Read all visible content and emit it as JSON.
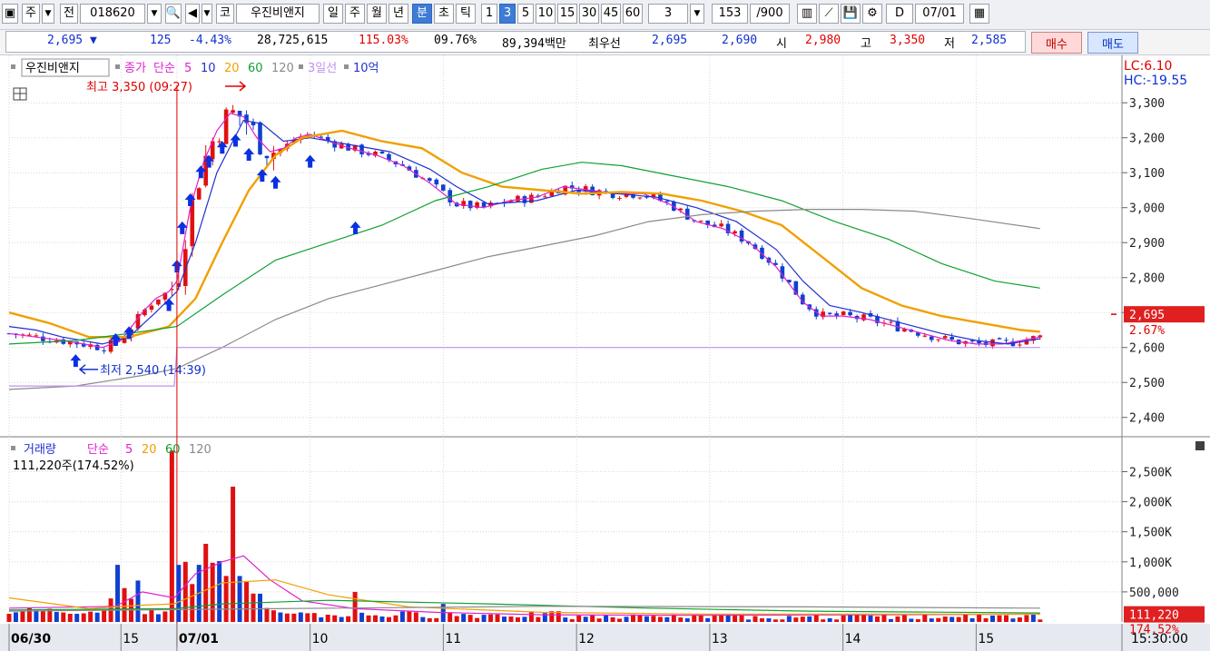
{
  "toolbar": {
    "items": [
      {
        "id": "layout",
        "label": "▣"
      },
      {
        "id": "type",
        "label": "주"
      },
      {
        "id": "type_dd",
        "label": "▼"
      },
      {
        "id": "prev",
        "label": "전"
      },
      {
        "id": "code",
        "label": "018620"
      },
      {
        "id": "code_dd",
        "label": "▼"
      },
      {
        "id": "search",
        "label": "🔍"
      },
      {
        "id": "sound",
        "label": "◀"
      },
      {
        "id": "sound_dd",
        "label": "▼"
      },
      {
        "id": "market",
        "label": "코"
      },
      {
        "id": "name",
        "label": "우진비앤지"
      },
      {
        "id": "p_day",
        "label": "일"
      },
      {
        "id": "p_week",
        "label": "주"
      },
      {
        "id": "p_month",
        "label": "월"
      },
      {
        "id": "p_year",
        "label": "년"
      },
      {
        "id": "p_min",
        "label": "분"
      },
      {
        "id": "p_sec",
        "label": "초"
      },
      {
        "id": "p_tick",
        "label": "틱"
      },
      {
        "id": "i1",
        "label": "1"
      },
      {
        "id": "i3",
        "label": "3"
      },
      {
        "id": "i5",
        "label": "5"
      },
      {
        "id": "i10",
        "label": "10"
      },
      {
        "id": "i15",
        "label": "15"
      },
      {
        "id": "i30",
        "label": "30"
      },
      {
        "id": "i45",
        "label": "45"
      },
      {
        "id": "i60",
        "label": "60"
      },
      {
        "id": "interval",
        "label": "3"
      },
      {
        "id": "interval_dd",
        "label": "▼"
      },
      {
        "id": "count",
        "label": "153"
      },
      {
        "id": "count_total",
        "label": "/900"
      },
      {
        "id": "candle_icon",
        "label": "▥"
      },
      {
        "id": "line_icon",
        "label": "⟋"
      },
      {
        "id": "save_icon",
        "label": "💾"
      },
      {
        "id": "gear_icon",
        "label": "⚙"
      },
      {
        "id": "d_check",
        "label": "D"
      },
      {
        "id": "date",
        "label": "07/01"
      },
      {
        "id": "cal_icon",
        "label": "▦"
      }
    ]
  },
  "info": {
    "price": "2,695 ▼",
    "change": "125",
    "pct": "-4.43%",
    "volume": "28,725,615",
    "vol_ratio": "115.03%",
    "turnover": "09.76%",
    "amount": "89,394백만",
    "best_label": "최우선",
    "best_ask": "2,695",
    "best_bid": "2,690",
    "open_label": "시",
    "open": "2,980",
    "high_label": "고",
    "high": "3,350",
    "low_label": "저",
    "low": "2,585",
    "buy_label": "매수",
    "sell_label": "매도"
  },
  "chart_data": {
    "type": "line",
    "price_legend": {
      "name": "우진비앤지",
      "close": "종가",
      "simple": "단순",
      "ma": [
        "5",
        "10",
        "20",
        "60",
        "120"
      ],
      "env": "3일선",
      "amt": "10억"
    },
    "volume_legend": {
      "name": "거래량",
      "simple": "단순",
      "ma": [
        "5",
        "20",
        "60",
        "120"
      ]
    },
    "volume_readout": "111,220주(174.52%)",
    "lc_hc": [
      "LC:6.10",
      "HC:-19.55"
    ],
    "high_annotation": "최고 3,350 (09:27)",
    "low_annotation": "최저 2,540 (14:39)",
    "current_price": "2,695",
    "current_pct": "2.67%",
    "current_volume": "111,220",
    "current_vol_pct": "174.52%",
    "y_ticks": [
      "3,300",
      "3,200",
      "3,100",
      "3,000",
      "2,900",
      "2,800",
      "2,700",
      "2,600",
      "2,500",
      "2,400"
    ],
    "y_values": [
      3300,
      3200,
      3100,
      3000,
      2900,
      2800,
      2700,
      2600,
      2500,
      2400
    ],
    "vol_ticks": [
      "2,500K",
      "2,000K",
      "1,500K",
      "1,000K",
      "500,000"
    ],
    "vol_values": [
      2500000,
      2000000,
      1500000,
      1000000,
      500000
    ],
    "x_labels": [
      "06/30",
      "15",
      "07/01",
      "10",
      "11",
      "12",
      "13",
      "14",
      "15",
      "15:30:00"
    ],
    "x_label_pos": [
      0,
      42,
      63,
      113,
      163,
      213,
      263,
      313,
      363,
      400
    ],
    "ylim": [
      2350,
      3420
    ],
    "series": [
      {
        "name": "5",
        "color": "#e020d0",
        "values": [
          [
            0,
            2640
          ],
          [
            10,
            2630
          ],
          [
            20,
            2620
          ],
          [
            28,
            2610
          ],
          [
            35,
            2600
          ],
          [
            42,
            2620
          ],
          [
            50,
            2700
          ],
          [
            55,
            2740
          ],
          [
            60,
            2760
          ],
          [
            63,
            2790
          ],
          [
            68,
            3000
          ],
          [
            73,
            3130
          ],
          [
            78,
            3220
          ],
          [
            83,
            3270
          ],
          [
            88,
            3260
          ],
          [
            93,
            3200
          ],
          [
            98,
            3160
          ],
          [
            103,
            3170
          ],
          [
            108,
            3200
          ],
          [
            113,
            3210
          ],
          [
            120,
            3190
          ],
          [
            128,
            3170
          ],
          [
            138,
            3150
          ],
          [
            148,
            3120
          ],
          [
            158,
            3070
          ],
          [
            168,
            3010
          ],
          [
            178,
            3000
          ],
          [
            188,
            3020
          ],
          [
            198,
            3030
          ],
          [
            208,
            3060
          ],
          [
            218,
            3050
          ],
          [
            228,
            3040
          ],
          [
            238,
            3040
          ],
          [
            248,
            3010
          ],
          [
            258,
            2960
          ],
          [
            268,
            2940
          ],
          [
            278,
            2900
          ],
          [
            288,
            2830
          ],
          [
            298,
            2730
          ],
          [
            305,
            2690
          ],
          [
            313,
            2690
          ],
          [
            323,
            2680
          ],
          [
            333,
            2660
          ],
          [
            343,
            2640
          ],
          [
            353,
            2620
          ],
          [
            363,
            2610
          ],
          [
            373,
            2610
          ],
          [
            387,
            2630
          ]
        ]
      },
      {
        "name": "10",
        "color": "#2030d0",
        "values": [
          [
            0,
            2660
          ],
          [
            10,
            2650
          ],
          [
            20,
            2630
          ],
          [
            35,
            2610
          ],
          [
            45,
            2630
          ],
          [
            55,
            2700
          ],
          [
            63,
            2760
          ],
          [
            70,
            2900
          ],
          [
            78,
            3100
          ],
          [
            88,
            3250
          ],
          [
            95,
            3240
          ],
          [
            103,
            3190
          ],
          [
            113,
            3200
          ],
          [
            128,
            3180
          ],
          [
            143,
            3160
          ],
          [
            158,
            3110
          ],
          [
            168,
            3060
          ],
          [
            180,
            3010
          ],
          [
            198,
            3020
          ],
          [
            213,
            3050
          ],
          [
            228,
            3040
          ],
          [
            243,
            3030
          ],
          [
            258,
            3000
          ],
          [
            273,
            2960
          ],
          [
            288,
            2880
          ],
          [
            298,
            2790
          ],
          [
            308,
            2720
          ],
          [
            320,
            2700
          ],
          [
            335,
            2670
          ],
          [
            350,
            2640
          ],
          [
            363,
            2620
          ],
          [
            375,
            2610
          ],
          [
            387,
            2625
          ]
        ]
      },
      {
        "name": "20",
        "color": "#f0a000",
        "values": [
          [
            0,
            2700
          ],
          [
            15,
            2670
          ],
          [
            30,
            2630
          ],
          [
            45,
            2630
          ],
          [
            60,
            2660
          ],
          [
            70,
            2740
          ],
          [
            80,
            2900
          ],
          [
            90,
            3050
          ],
          [
            100,
            3150
          ],
          [
            110,
            3200
          ],
          [
            125,
            3220
          ],
          [
            140,
            3190
          ],
          [
            155,
            3170
          ],
          [
            170,
            3100
          ],
          [
            185,
            3060
          ],
          [
            200,
            3050
          ],
          [
            215,
            3040
          ],
          [
            230,
            3045
          ],
          [
            245,
            3040
          ],
          [
            260,
            3020
          ],
          [
            275,
            2990
          ],
          [
            290,
            2950
          ],
          [
            305,
            2860
          ],
          [
            320,
            2770
          ],
          [
            335,
            2720
          ],
          [
            350,
            2690
          ],
          [
            365,
            2670
          ],
          [
            380,
            2650
          ],
          [
            387,
            2645
          ]
        ]
      },
      {
        "name": "60",
        "color": "#10a030",
        "values": [
          [
            0,
            2610
          ],
          [
            25,
            2620
          ],
          [
            45,
            2640
          ],
          [
            63,
            2660
          ],
          [
            80,
            2750
          ],
          [
            100,
            2850
          ],
          [
            120,
            2900
          ],
          [
            140,
            2950
          ],
          [
            160,
            3020
          ],
          [
            180,
            3060
          ],
          [
            200,
            3110
          ],
          [
            215,
            3130
          ],
          [
            230,
            3120
          ],
          [
            250,
            3090
          ],
          [
            270,
            3060
          ],
          [
            290,
            3020
          ],
          [
            310,
            2960
          ],
          [
            330,
            2910
          ],
          [
            350,
            2840
          ],
          [
            370,
            2790
          ],
          [
            387,
            2770
          ]
        ]
      },
      {
        "name": "120",
        "color": "#8a8a8a",
        "values": [
          [
            0,
            2480
          ],
          [
            25,
            2490
          ],
          [
            50,
            2520
          ],
          [
            63,
            2540
          ],
          [
            80,
            2600
          ],
          [
            100,
            2680
          ],
          [
            120,
            2740
          ],
          [
            140,
            2780
          ],
          [
            160,
            2820
          ],
          [
            180,
            2860
          ],
          [
            200,
            2890
          ],
          [
            220,
            2920
          ],
          [
            240,
            2960
          ],
          [
            260,
            2980
          ],
          [
            280,
            2990
          ],
          [
            300,
            2995
          ],
          [
            320,
            2995
          ],
          [
            340,
            2990
          ],
          [
            360,
            2970
          ],
          [
            387,
            2940
          ]
        ]
      },
      {
        "name": "3일선",
        "color": "#c090f0",
        "values": [
          [
            0,
            2490
          ],
          [
            62,
            2490
          ],
          [
            63,
            2600
          ],
          [
            387,
            2600
          ]
        ]
      }
    ]
  }
}
